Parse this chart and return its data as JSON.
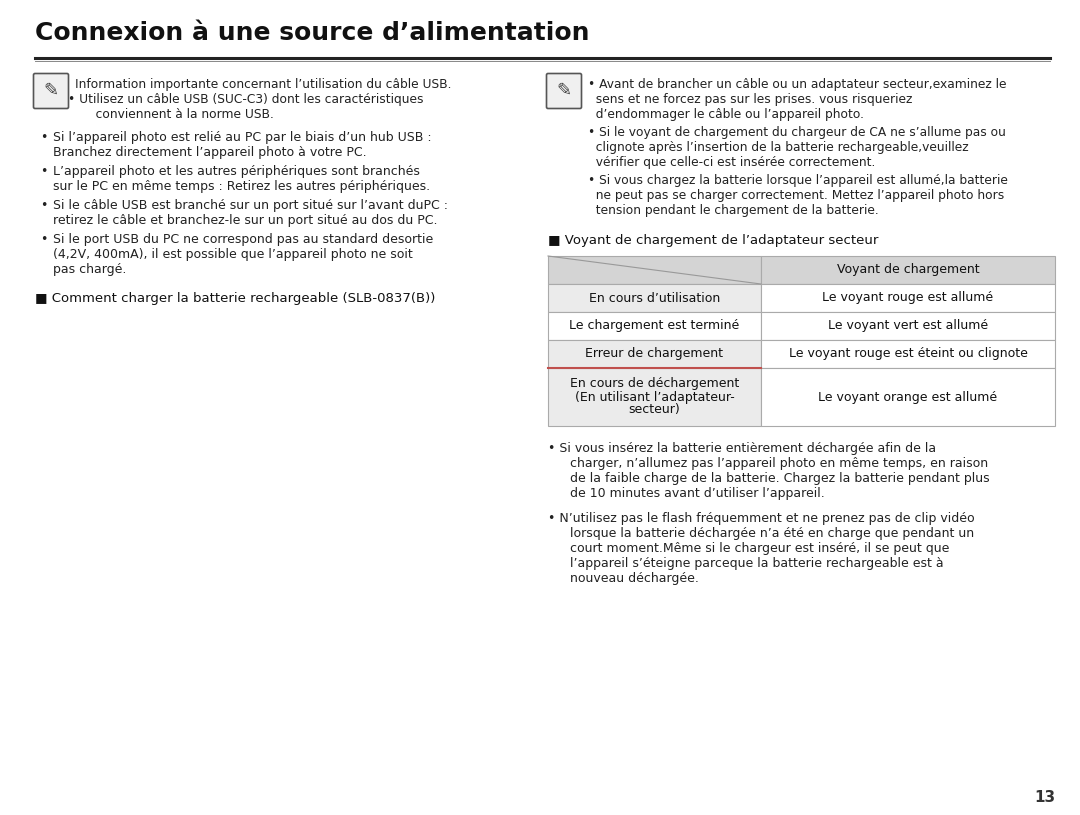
{
  "bg_color": "#ffffff",
  "page_number": "13",
  "title": "Connexion à une source d’alimentation",
  "left_col": {
    "note_line1": "Information importante concernant l’utilisation du câble USB.",
    "note_line2": "• Utilisez un câble USB (SUC-C3) dont les caractéristiques",
    "note_line3": "   conviennent à la norme USB.",
    "bullets": [
      [
        "Si l’appareil photo est relié au PC par le biais d’un hub USB :",
        "Branchez directement l’appareil photo à votre PC."
      ],
      [
        "L’appareil photo et les autres périphériques sont branchés",
        "sur le PC en même temps : Retirez les autres périphériques."
      ],
      [
        "Si le câble USB est branché sur un port situé sur l’avant duPC :",
        "retirez le câble et branchez-le sur un port situé au dos du PC."
      ],
      [
        "Si le port USB du PC ne correspond pas au standard desortie",
        "(4,2V, 400mA), il est possible que l’appareil photo ne soit",
        "pas chargé."
      ]
    ],
    "section_label": "■ Comment charger la batterie rechargeable (SLB-0837(B))"
  },
  "right_col": {
    "note_bullets": [
      [
        "• Avant de brancher un câble ou un adaptateur secteur,examinez le",
        "  sens et ne forcez pas sur les prises. vous risqueriez",
        "  d’endommager le câble ou l’appareil photo."
      ],
      [
        "• Si le voyant de chargement du chargeur de CA ne s’allume pas ou",
        "  clignote après l’insertion de la batterie rechargeable,veuillez",
        "  vérifier que celle-ci est insérée correctement."
      ],
      [
        "• Si vous chargez la batterie lorsque l’appareil est allumé,la batterie",
        "  ne peut pas se charger correctement. Mettez l’appareil photo hors",
        "  tension pendant le chargement de la batterie."
      ]
    ],
    "table_title": "■ Voyant de chargement de l’adaptateur secteur",
    "table_header_col2": "Voyant de chargement",
    "table_rows": [
      [
        "En cours d’utilisation",
        "Le voyant rouge est allumé"
      ],
      [
        "Le chargement est terminé",
        "Le voyant vert est allumé"
      ],
      [
        "Erreur de chargement",
        "Le voyant rouge est éteint ou clignote"
      ],
      [
        "En cours de déchargement\n(En utilisant l’adaptateur-\nsecteur)",
        "Le voyant orange est allumé"
      ]
    ],
    "bullets": [
      [
        "• Si vous insérez la batterie entièrement déchargée afin de la",
        "  charger, n’allumez pas l’appareil photo en même temps, en raison",
        "  de la faible charge de la batterie. Chargez la batterie pendant plus",
        "  de 10 minutes avant d’utiliser l’appareil."
      ],
      [
        "• N’utilisez pas le flash fréquemment et ne prenez pas de clip vidéo",
        "  lorsque la batterie déchargée n’a été en charge que pendant un",
        "  court moment.Même si le chargeur est inséré, il se peut que",
        "  l’appareil s’éteigne parceque la batterie rechargeable est à",
        "  nouveau déchargée."
      ]
    ]
  },
  "table_bg_header": "#d4d4d4",
  "table_bg_row_odd": "#ebebeb",
  "table_bg_row_even": "#ffffff",
  "table_border_color": "#aaaaaa",
  "table_last_row_left_border": "#c0504d"
}
